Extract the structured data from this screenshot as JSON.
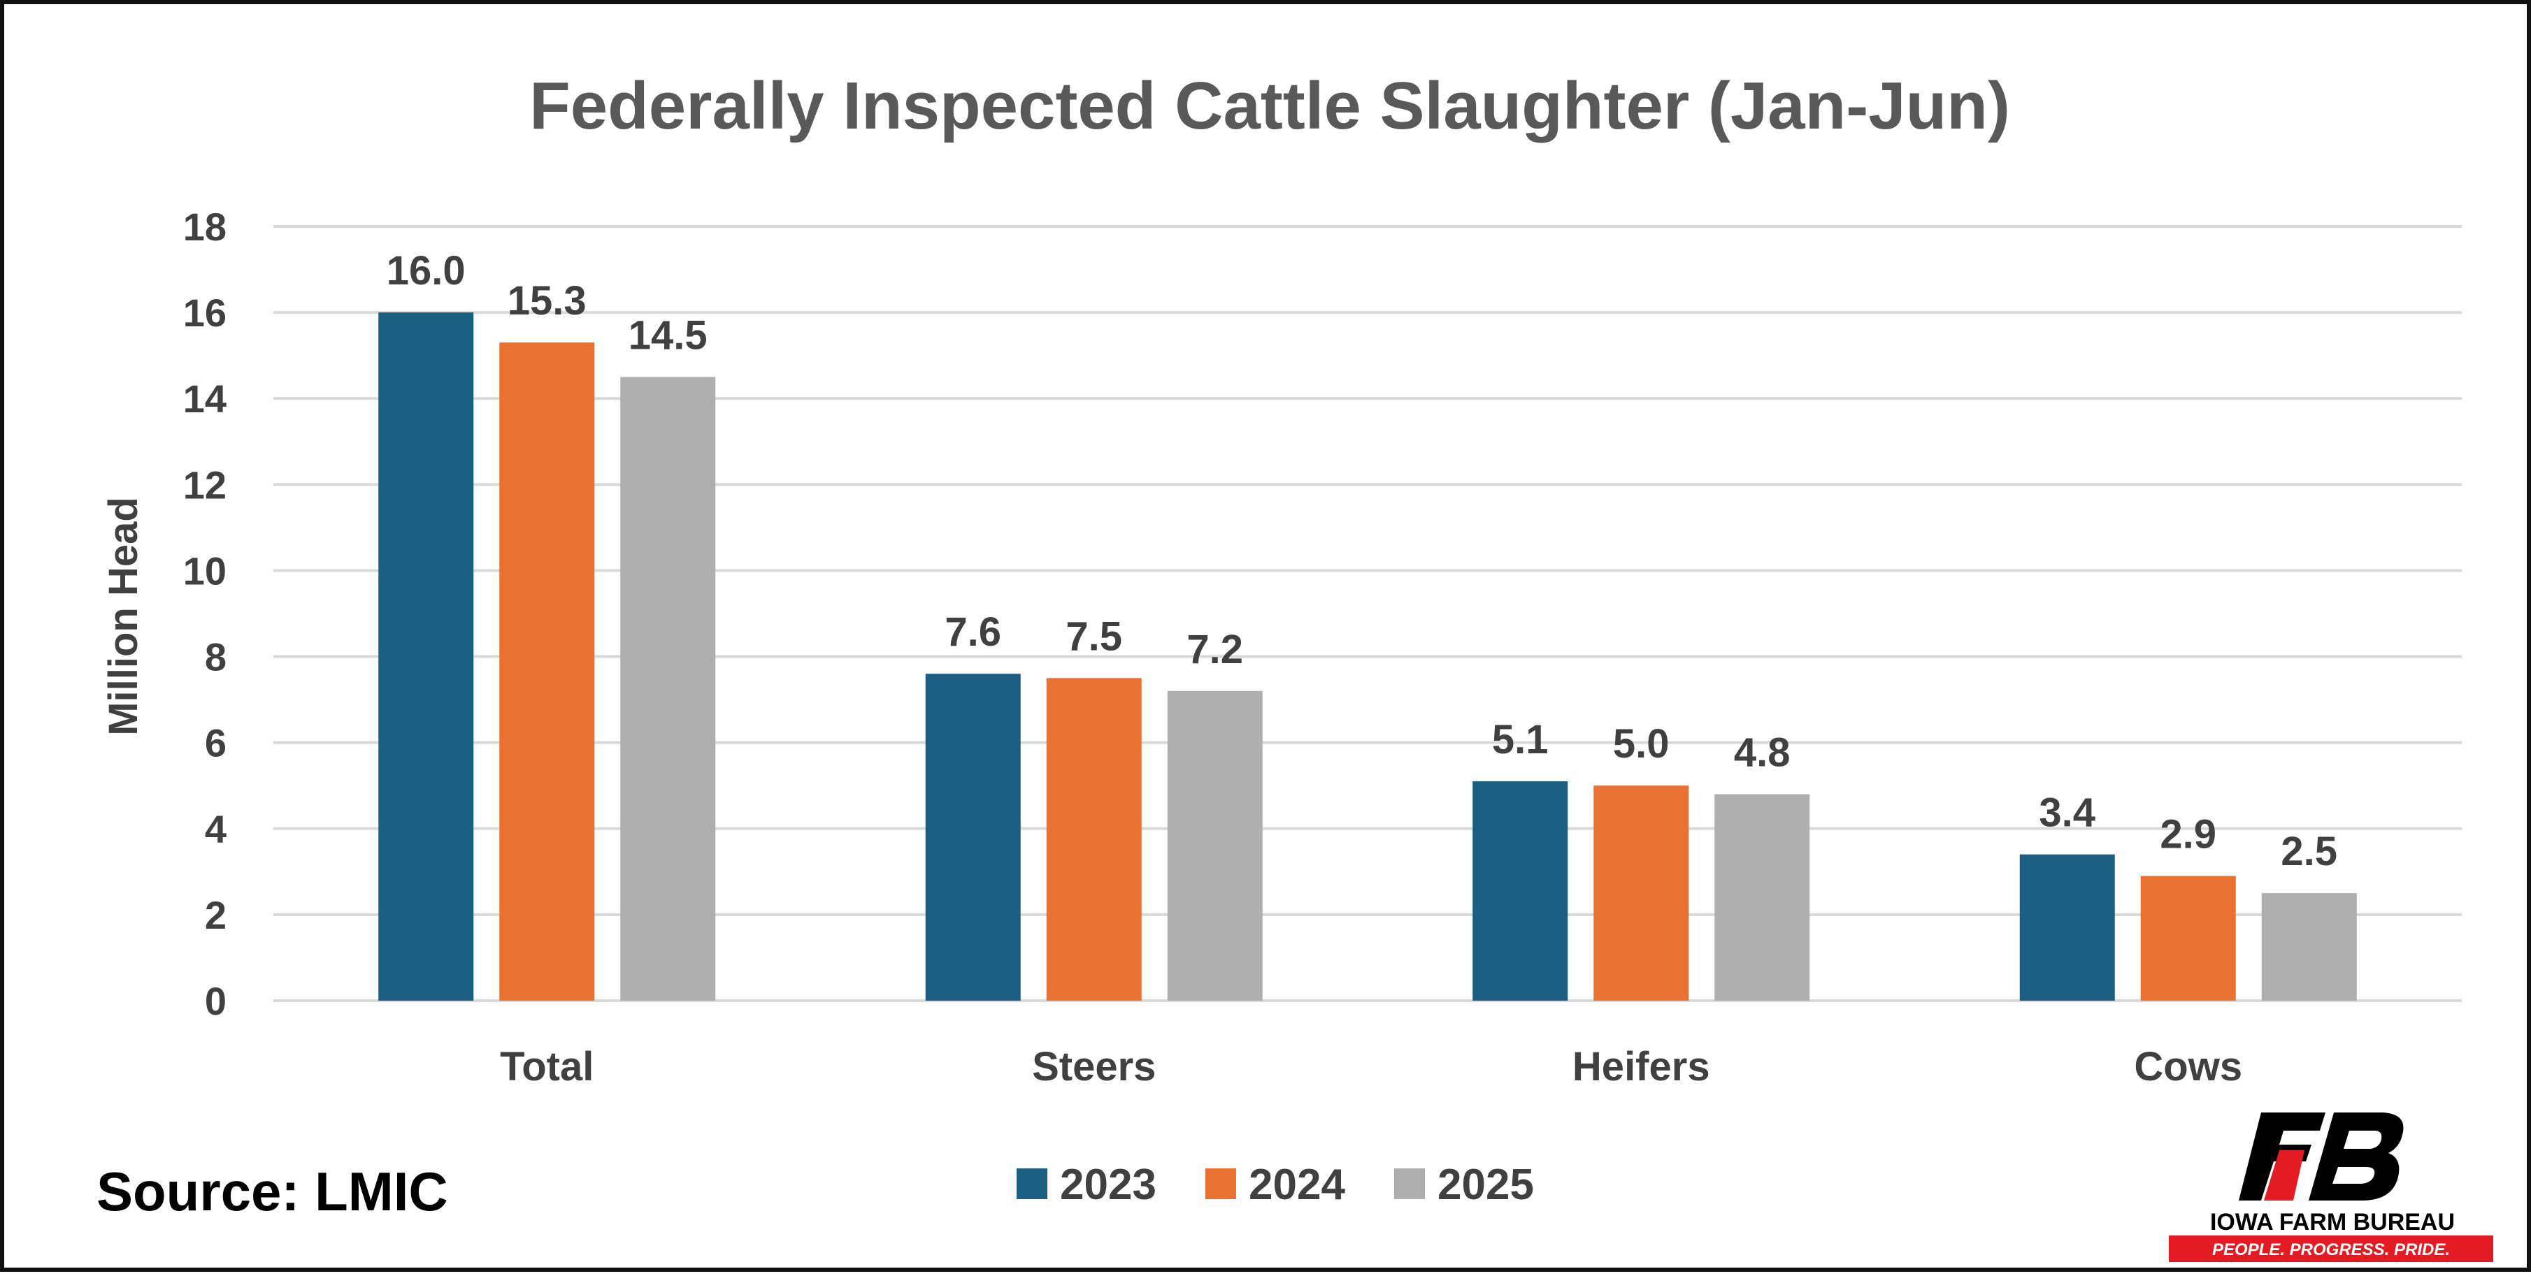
{
  "chart_data": {
    "type": "bar",
    "title": "Federally Inspected Cattle Slaughter (Jan-Jun)",
    "ylabel": "Million Head",
    "xlabel": "",
    "ylim": [
      0,
      18
    ],
    "yticks": [
      0,
      2,
      4,
      6,
      8,
      10,
      12,
      14,
      16,
      18
    ],
    "grid": true,
    "legend_position": "bottom",
    "categories": [
      "Total",
      "Steers",
      "Heifers",
      "Cows"
    ],
    "series": [
      {
        "name": "2023",
        "color": "#1a5e82",
        "values": [
          16.0,
          7.6,
          5.1,
          3.4
        ]
      },
      {
        "name": "2024",
        "color": "#e97132",
        "values": [
          15.3,
          7.5,
          5.0,
          2.9
        ]
      },
      {
        "name": "2025",
        "color": "#afafaf",
        "values": [
          14.5,
          7.2,
          4.8,
          2.5
        ]
      }
    ],
    "value_format_decimals": 1
  },
  "source_text": "Source: LMIC",
  "logo": {
    "name": "IOWA FARM BUREAU",
    "tagline": "PEOPLE. PROGRESS. PRIDE.",
    "mark": "FB",
    "red": "#e31b23",
    "black": "#000000"
  }
}
